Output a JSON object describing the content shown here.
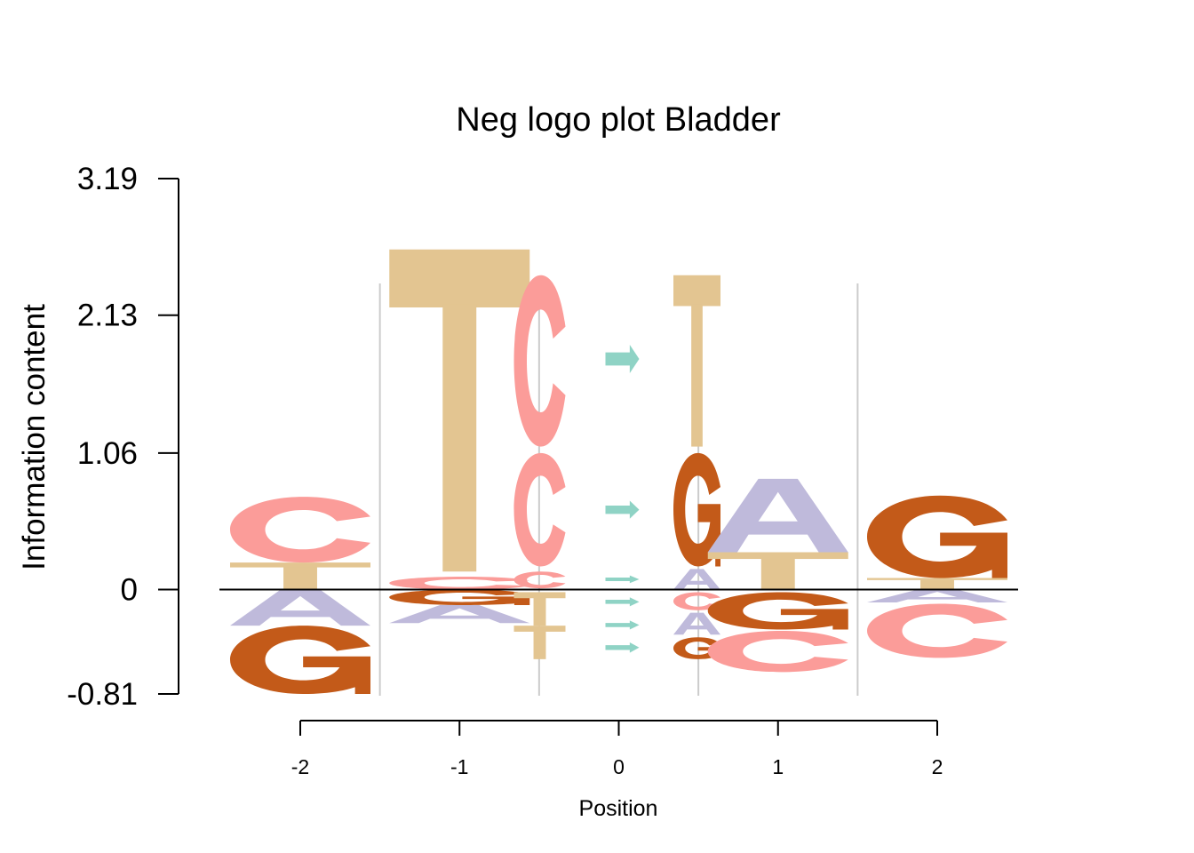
{
  "chart_data": {
    "type": "sequence-logo",
    "title": "Neg logo plot Bladder",
    "xlabel": "Position",
    "ylabel": "Information content",
    "y_ticks": [
      "3.19",
      "2.13",
      "1.06",
      "0",
      "-0.81"
    ],
    "ylim": [
      -0.81,
      3.19
    ],
    "x_ticks": [
      "-2",
      "-1",
      "0",
      "1",
      "2"
    ],
    "colors": {
      "A": "#bfbadb",
      "C": "#fb9c99",
      "G": "#c35a19",
      "T": "#e3c591",
      "arrow": "#8fd3c5"
    },
    "positions": [
      {
        "label": "-2",
        "columns": [
          {
            "stack": [
              {
                "char": "A",
                "from": -0.28,
                "to": 0
              },
              {
                "char": "G",
                "from": -0.81,
                "to": -0.28
              },
              {
                "char": "T",
                "from": 0,
                "to": 0.21
              },
              {
                "char": "C",
                "from": 0.21,
                "to": 0.72
              }
            ]
          }
        ]
      },
      {
        "label": "-1",
        "columns": [
          {
            "stack": [
              {
                "char": "G",
                "from": -0.12,
                "to": 0
              },
              {
                "char": "A",
                "from": -0.26,
                "to": -0.12
              },
              {
                "char": "C",
                "from": 0,
                "to": 0.1
              },
              {
                "char": "T",
                "from": 0.14,
                "to": 2.64
              }
            ]
          }
        ]
      },
      {
        "label": "0",
        "columns": [
          {
            "stack": [
              {
                "char": "T",
                "from": -0.28,
                "to": -0.02
              },
              {
                "char": "T",
                "from": -0.54,
                "to": -0.28
              },
              {
                "char": "C",
                "from": 0.01,
                "to": 0.14
              },
              {
                "char": "C",
                "from": 0.18,
                "to": 1.06
              },
              {
                "char": "C",
                "from": 1.11,
                "to": 2.44
              }
            ]
          },
          {
            "stack": [
              {
                "char": "arrow",
                "from": 1.68,
                "to": 1.9
              },
              {
                "char": "arrow",
                "from": 0.55,
                "to": 0.69
              },
              {
                "char": "arrow",
                "from": 0.05,
                "to": 0.11
              },
              {
                "char": "arrow",
                "from": -0.13,
                "to": -0.06
              },
              {
                "char": "arrow",
                "from": -0.31,
                "to": -0.24
              },
              {
                "char": "arrow",
                "from": -0.49,
                "to": -0.41
              }
            ]
          },
          {
            "stack": [
              {
                "char": "T",
                "from": 1.11,
                "to": 2.44
              },
              {
                "char": "G",
                "from": 0.18,
                "to": 1.06
              },
              {
                "char": "A",
                "from": 0,
                "to": 0.16
              },
              {
                "char": "C",
                "from": -0.16,
                "to": -0.02
              },
              {
                "char": "A",
                "from": -0.35,
                "to": -0.18
              },
              {
                "char": "G",
                "from": -0.54,
                "to": -0.37
              }
            ]
          }
        ]
      },
      {
        "label": "1",
        "columns": [
          {
            "stack": [
              {
                "char": "G",
                "from": -0.31,
                "to": -0.02
              },
              {
                "char": "C",
                "from": -0.64,
                "to": -0.32
              },
              {
                "char": "T",
                "from": 0,
                "to": 0.29
              },
              {
                "char": "A",
                "from": 0.29,
                "to": 0.86
              }
            ]
          }
        ]
      },
      {
        "label": "2",
        "columns": [
          {
            "stack": [
              {
                "char": "A",
                "from": -0.1,
                "to": 0
              },
              {
                "char": "C",
                "from": -0.53,
                "to": -0.11
              },
              {
                "char": "T",
                "from": 0,
                "to": 0.09
              },
              {
                "char": "G",
                "from": 0.09,
                "to": 0.73
              }
            ]
          }
        ]
      }
    ]
  }
}
